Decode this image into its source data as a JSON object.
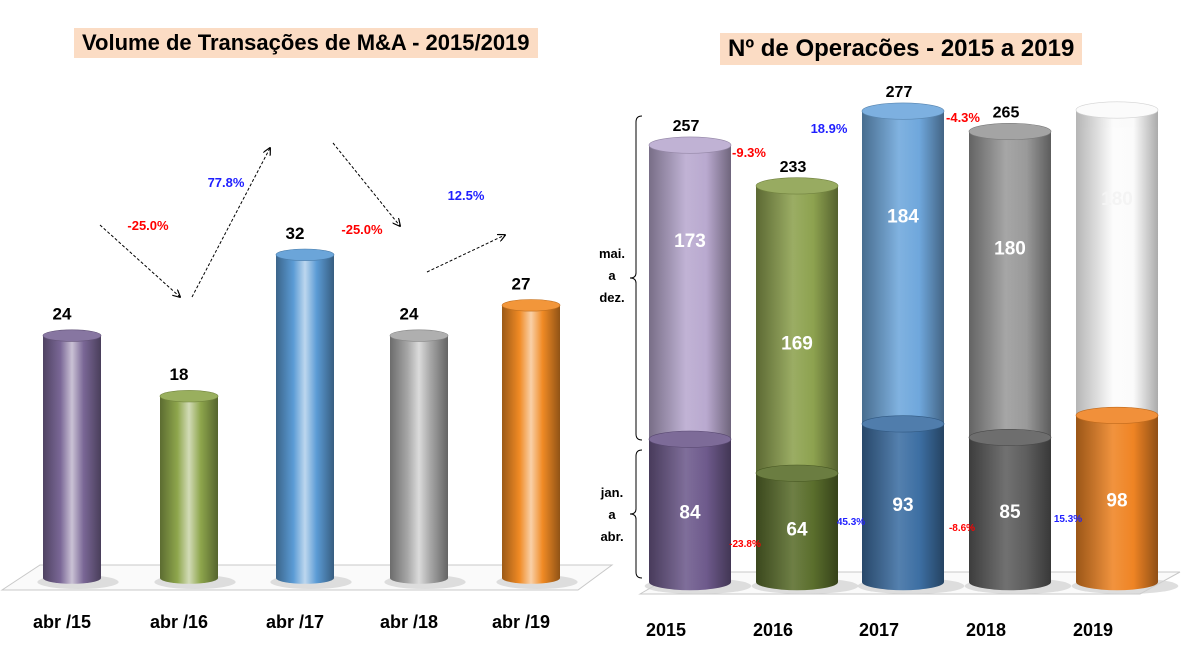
{
  "chart_data": [
    {
      "type": "bar",
      "style": "3d-cylinder",
      "title": "Volume de Transações de M&A - 2015/2019",
      "xlabel": "",
      "ylabel": "",
      "categories": [
        "abr /15",
        "abr /16",
        "abr /17",
        "abr /18",
        "abr /19"
      ],
      "values": [
        24,
        18,
        32,
        24,
        27
      ],
      "colors": [
        "#7a6796",
        "#8ea64c",
        "#5b9bd5",
        "#a6a6a6",
        "#f08a24"
      ],
      "changes": [
        {
          "from": "abr /15",
          "to": "abr /16",
          "label": "-25.0%",
          "color": "#ff0000"
        },
        {
          "from": "abr /16",
          "to": "abr /17",
          "label": "77.8%",
          "color": "#1f1fff"
        },
        {
          "from": "abr /17",
          "to": "abr /18",
          "label": "-25.0%",
          "color": "#ff0000"
        },
        {
          "from": "abr /18",
          "to": "abr /19",
          "label": "12.5%",
          "color": "#1f1fff"
        }
      ],
      "ylim": [
        0,
        35
      ],
      "grid": false,
      "legend": "none"
    },
    {
      "type": "bar",
      "style": "3d-cylinder-stacked",
      "title": "Nº de Operacões  - 2015 a 2019",
      "categories": [
        "2015",
        "2016",
        "2017",
        "2018",
        "2019"
      ],
      "series": [
        {
          "name": "jan. a abr.",
          "values": [
            84,
            64,
            93,
            85,
            98
          ],
          "colors": [
            "#6e5a8c",
            "#5a6e2c",
            "#3d6fa3",
            "#5e5e5e",
            "#ef8424"
          ]
        },
        {
          "name": "mai. a dez.",
          "values": [
            173,
            169,
            184,
            180,
            null
          ],
          "colors": [
            "#b9a9cf",
            "#8da24f",
            "#6fa7dc",
            "#9a9a9a",
            "#fafafa"
          ]
        }
      ],
      "totals": [
        257,
        233,
        277,
        265,
        null
      ],
      "ghost_2019_label": "180",
      "total_changes": [
        {
          "from": "2015",
          "to": "2016",
          "label": "-9.3%",
          "color": "#ff0000"
        },
        {
          "from": "2016",
          "to": "2017",
          "label": "18.9%",
          "color": "#1f1fff"
        },
        {
          "from": "2017",
          "to": "2018",
          "label": "-4.3%",
          "color": "#ff0000"
        }
      ],
      "jan_apr_changes": [
        {
          "from": "2015",
          "to": "2016",
          "label": "-23.8%",
          "color": "#ff0000"
        },
        {
          "from": "2016",
          "to": "2017",
          "label": "45.3%",
          "color": "#1f1fff"
        },
        {
          "from": "2017",
          "to": "2018",
          "label": "-8.6%",
          "color": "#ff0000"
        },
        {
          "from": "2018",
          "to": "2019",
          "label": "15.3%",
          "color": "#1f1fff"
        }
      ],
      "brace_labels": {
        "upper": [
          "mai.",
          "a",
          "dez."
        ],
        "lower": [
          "jan.",
          "a",
          "abr."
        ]
      },
      "ylim": [
        0,
        290
      ],
      "grid": false,
      "legend": "brace-left"
    }
  ]
}
